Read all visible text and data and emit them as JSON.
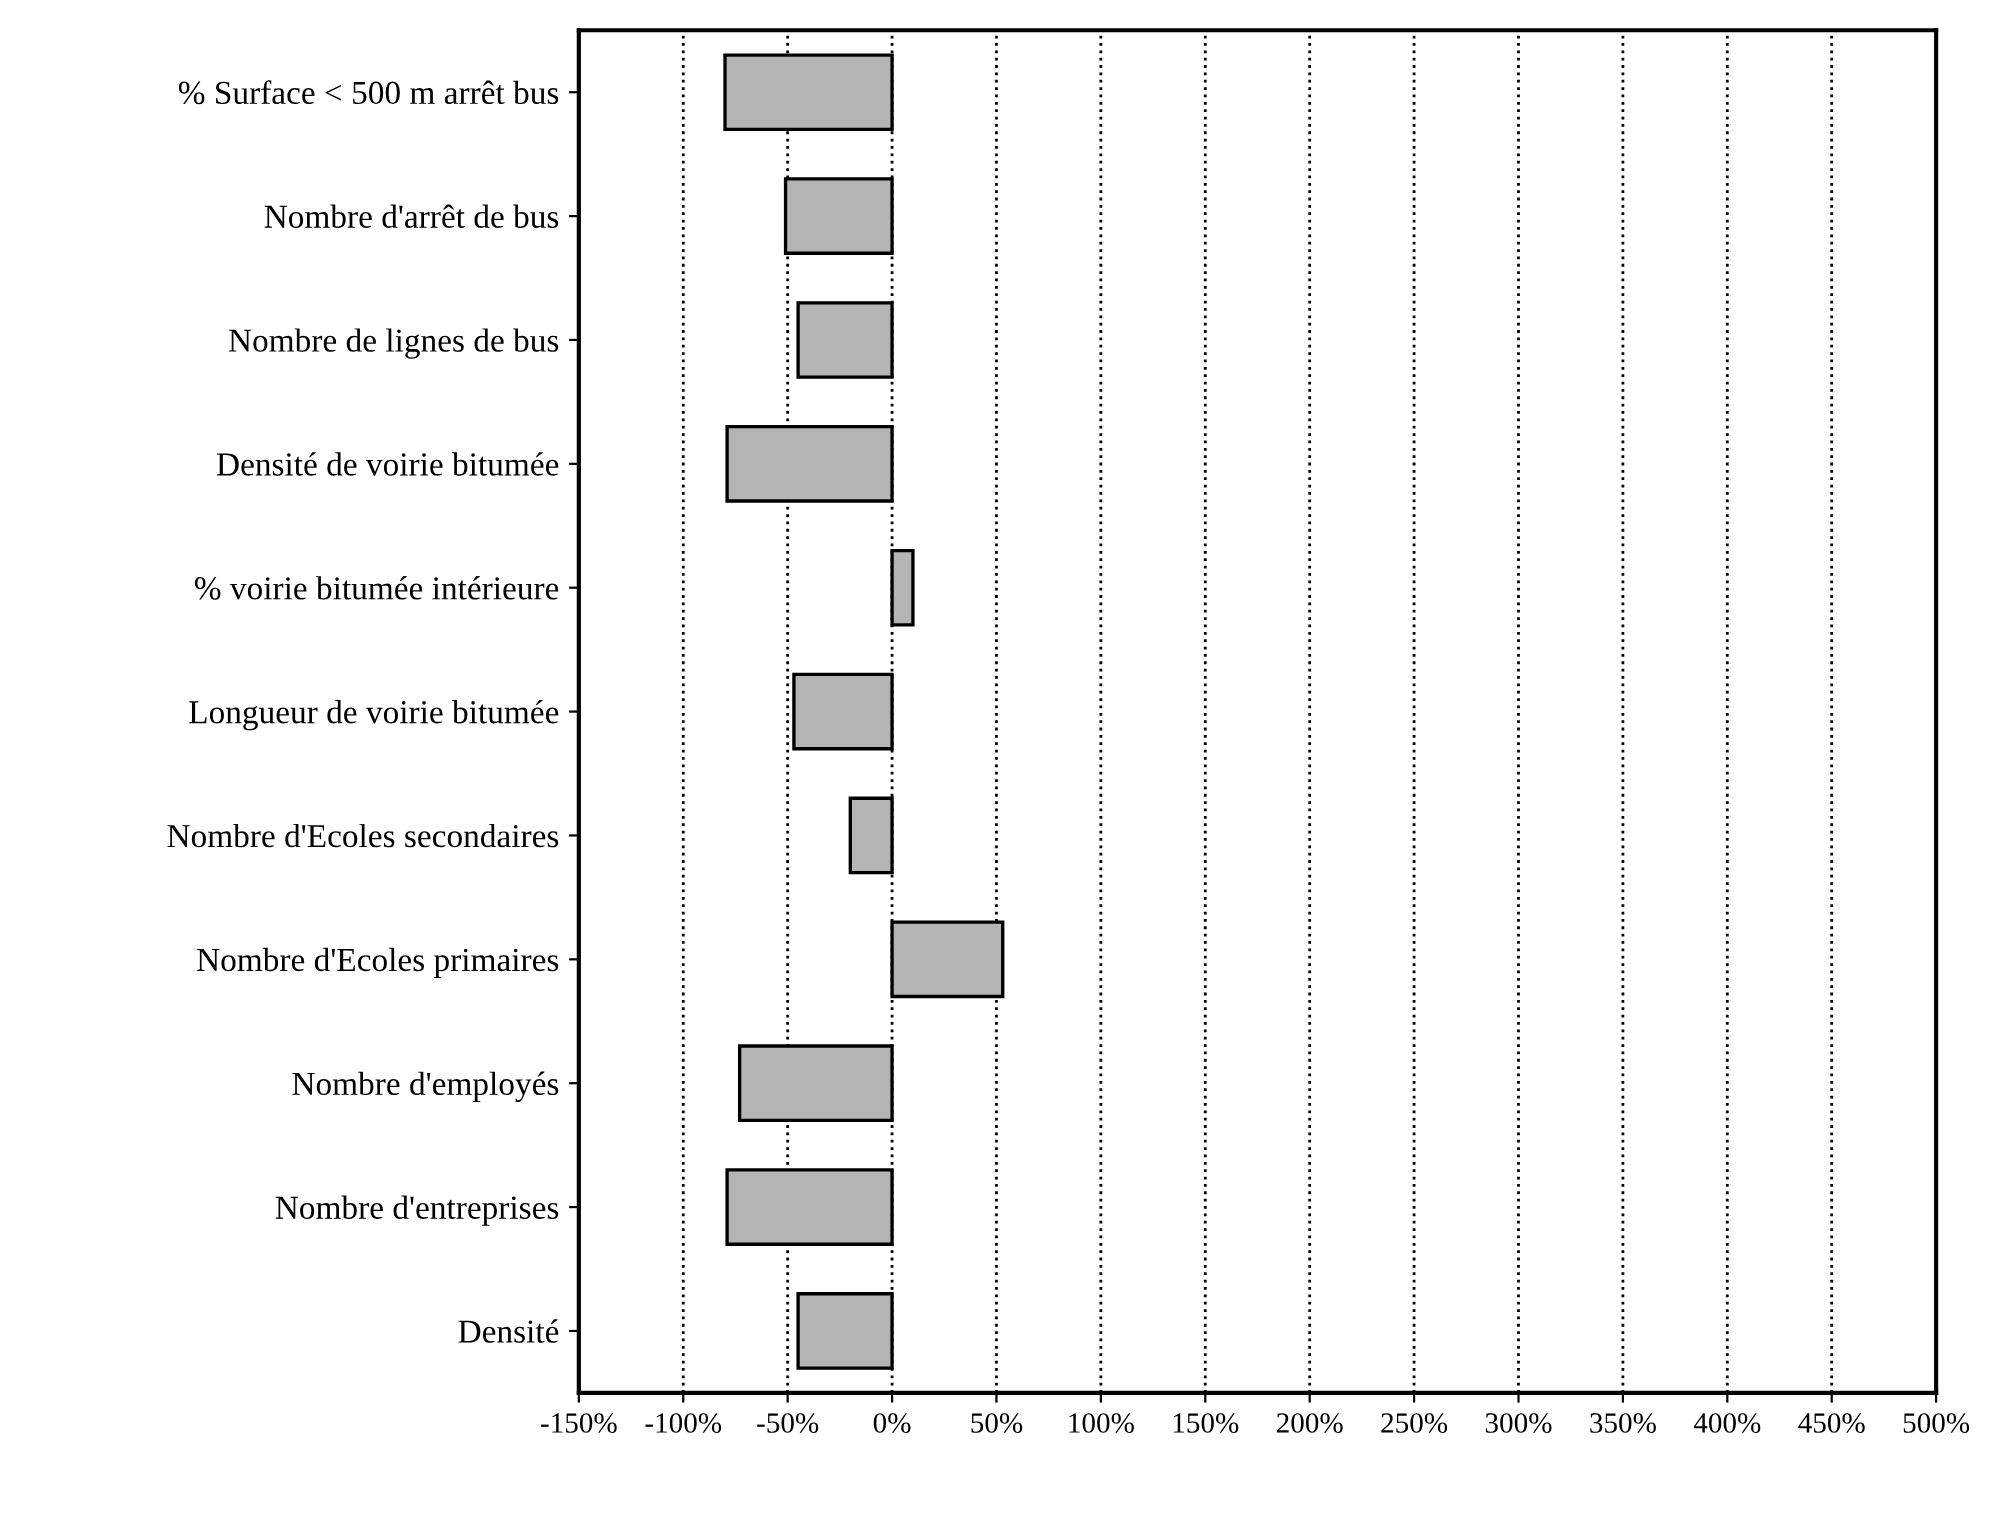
{
  "chart_data": {
    "type": "bar",
    "orientation": "horizontal",
    "categories": [
      "% Surface < 500 m arrêt bus",
      "Nombre d'arrêt de bus",
      "Nombre de lignes de bus",
      "Densité de voirie bitumée",
      "% voirie bitumée intérieure",
      "Longueur de voirie bitumée",
      "Nombre d'Ecoles secondaires",
      "Nombre d'Ecoles primaires",
      "Nombre d'employés",
      "Nombre d'entreprises",
      "Densité"
    ],
    "values": [
      -80,
      -51,
      -45,
      -79,
      10,
      -47,
      -20,
      53,
      -73,
      -79,
      -45
    ],
    "color": "#b4b4b4",
    "xlim": [
      -150,
      500
    ],
    "xticks": [
      {
        "value": -150,
        "label": "-150%"
      },
      {
        "value": -100,
        "label": "-100%"
      },
      {
        "value": -50,
        "label": "-50%"
      },
      {
        "value": 0,
        "label": "0%"
      },
      {
        "value": 50,
        "label": "50%"
      },
      {
        "value": 100,
        "label": "100%"
      },
      {
        "value": 150,
        "label": "150%"
      },
      {
        "value": 200,
        "label": "200%"
      },
      {
        "value": 250,
        "label": "250%"
      },
      {
        "value": 300,
        "label": "300%"
      },
      {
        "value": 350,
        "label": "350%"
      },
      {
        "value": 400,
        "label": "400%"
      },
      {
        "value": 450,
        "label": "450%"
      },
      {
        "value": 500,
        "label": "500%"
      }
    ],
    "grid": "x",
    "line_style": "dotted"
  }
}
